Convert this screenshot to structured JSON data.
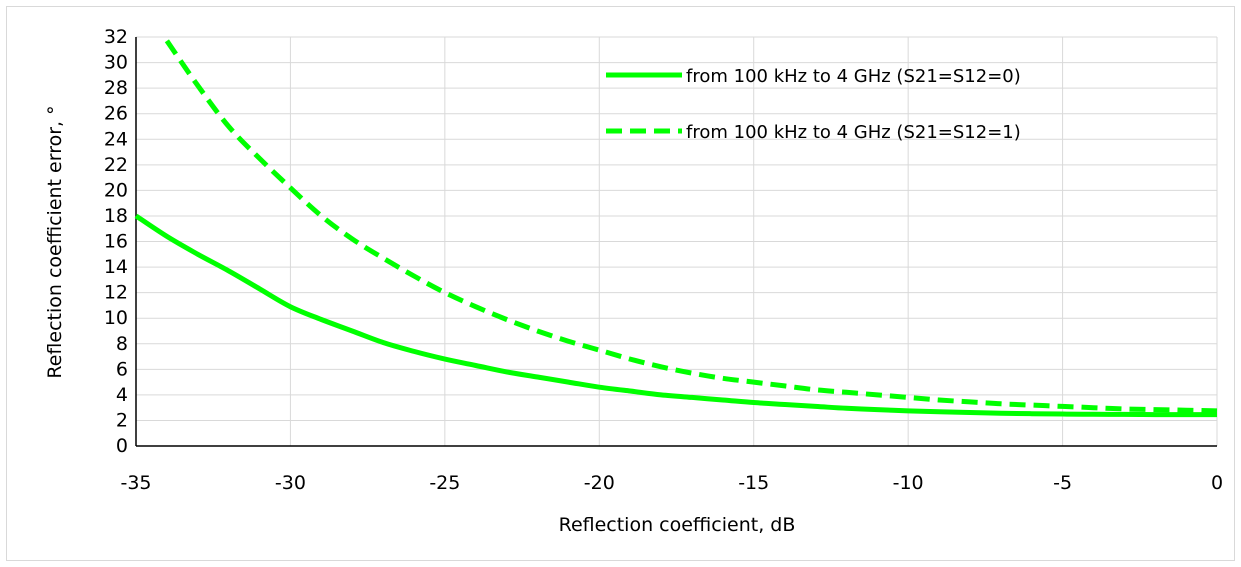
{
  "chart_data": {
    "type": "line",
    "title": "",
    "xlabel": "Reflection coefficient, dB",
    "ylabel": "Reflection coefficient error, °",
    "xlim": [
      -35,
      0
    ],
    "ylim": [
      0,
      32
    ],
    "x_ticks": [
      -35,
      -30,
      -25,
      -20,
      -15,
      -10,
      -5,
      0
    ],
    "x_tick_labels": [
      "-35",
      "-30",
      "-25",
      "-20",
      "-15",
      "-10",
      "-5",
      "0"
    ],
    "y_ticks": [
      0,
      2,
      4,
      6,
      8,
      10,
      12,
      14,
      16,
      18,
      20,
      22,
      24,
      26,
      28,
      30,
      32
    ],
    "y_tick_labels": [
      "0",
      "2",
      "4",
      "6",
      "8",
      "10",
      "12",
      "14",
      "16",
      "18",
      "20",
      "22",
      "24",
      "26",
      "28",
      "30",
      "32"
    ],
    "grid": true,
    "legend_position": "top-right",
    "series": [
      {
        "name": "from 100 kHz to 4 GHz (S21=S12=0)",
        "color": "#00ff00",
        "dash": "solid",
        "x": [
          -35,
          -34,
          -33,
          -32,
          -31,
          -30,
          -29,
          -28,
          -27,
          -26,
          -25,
          -24,
          -23,
          -22,
          -21,
          -20,
          -19,
          -18,
          -17,
          -16,
          -15,
          -14,
          -13,
          -12,
          -11,
          -10,
          -9,
          -8,
          -7,
          -6,
          -5,
          -4,
          -3,
          -2,
          -1,
          0
        ],
        "y": [
          18.0,
          16.4,
          15.0,
          13.7,
          12.3,
          10.9,
          9.9,
          9.0,
          8.1,
          7.4,
          6.8,
          6.3,
          5.8,
          5.4,
          5.0,
          4.6,
          4.3,
          4.0,
          3.8,
          3.6,
          3.4,
          3.25,
          3.1,
          2.95,
          2.85,
          2.75,
          2.68,
          2.62,
          2.57,
          2.53,
          2.5,
          2.48,
          2.47,
          2.46,
          2.46,
          2.46
        ]
      },
      {
        "name": "from 100 kHz to 4 GHz (S21=S12=1)",
        "color": "#00ff00",
        "dash": "dashed",
        "x": [
          -34,
          -33,
          -32,
          -31,
          -30,
          -29,
          -28,
          -27,
          -26,
          -25,
          -24,
          -23,
          -22,
          -21,
          -20,
          -19,
          -18,
          -17,
          -16,
          -15,
          -14,
          -13,
          -12,
          -11,
          -10,
          -9,
          -8,
          -7,
          -6,
          -5,
          -4,
          -3,
          -2,
          -1,
          0
        ],
        "y": [
          31.7,
          28.2,
          25.0,
          22.5,
          20.2,
          18.0,
          16.2,
          14.7,
          13.3,
          12.0,
          10.9,
          9.9,
          9.0,
          8.2,
          7.5,
          6.8,
          6.2,
          5.7,
          5.3,
          5.0,
          4.7,
          4.4,
          4.2,
          4.0,
          3.8,
          3.6,
          3.45,
          3.3,
          3.2,
          3.1,
          3.0,
          2.9,
          2.85,
          2.8,
          2.75
        ]
      }
    ]
  }
}
